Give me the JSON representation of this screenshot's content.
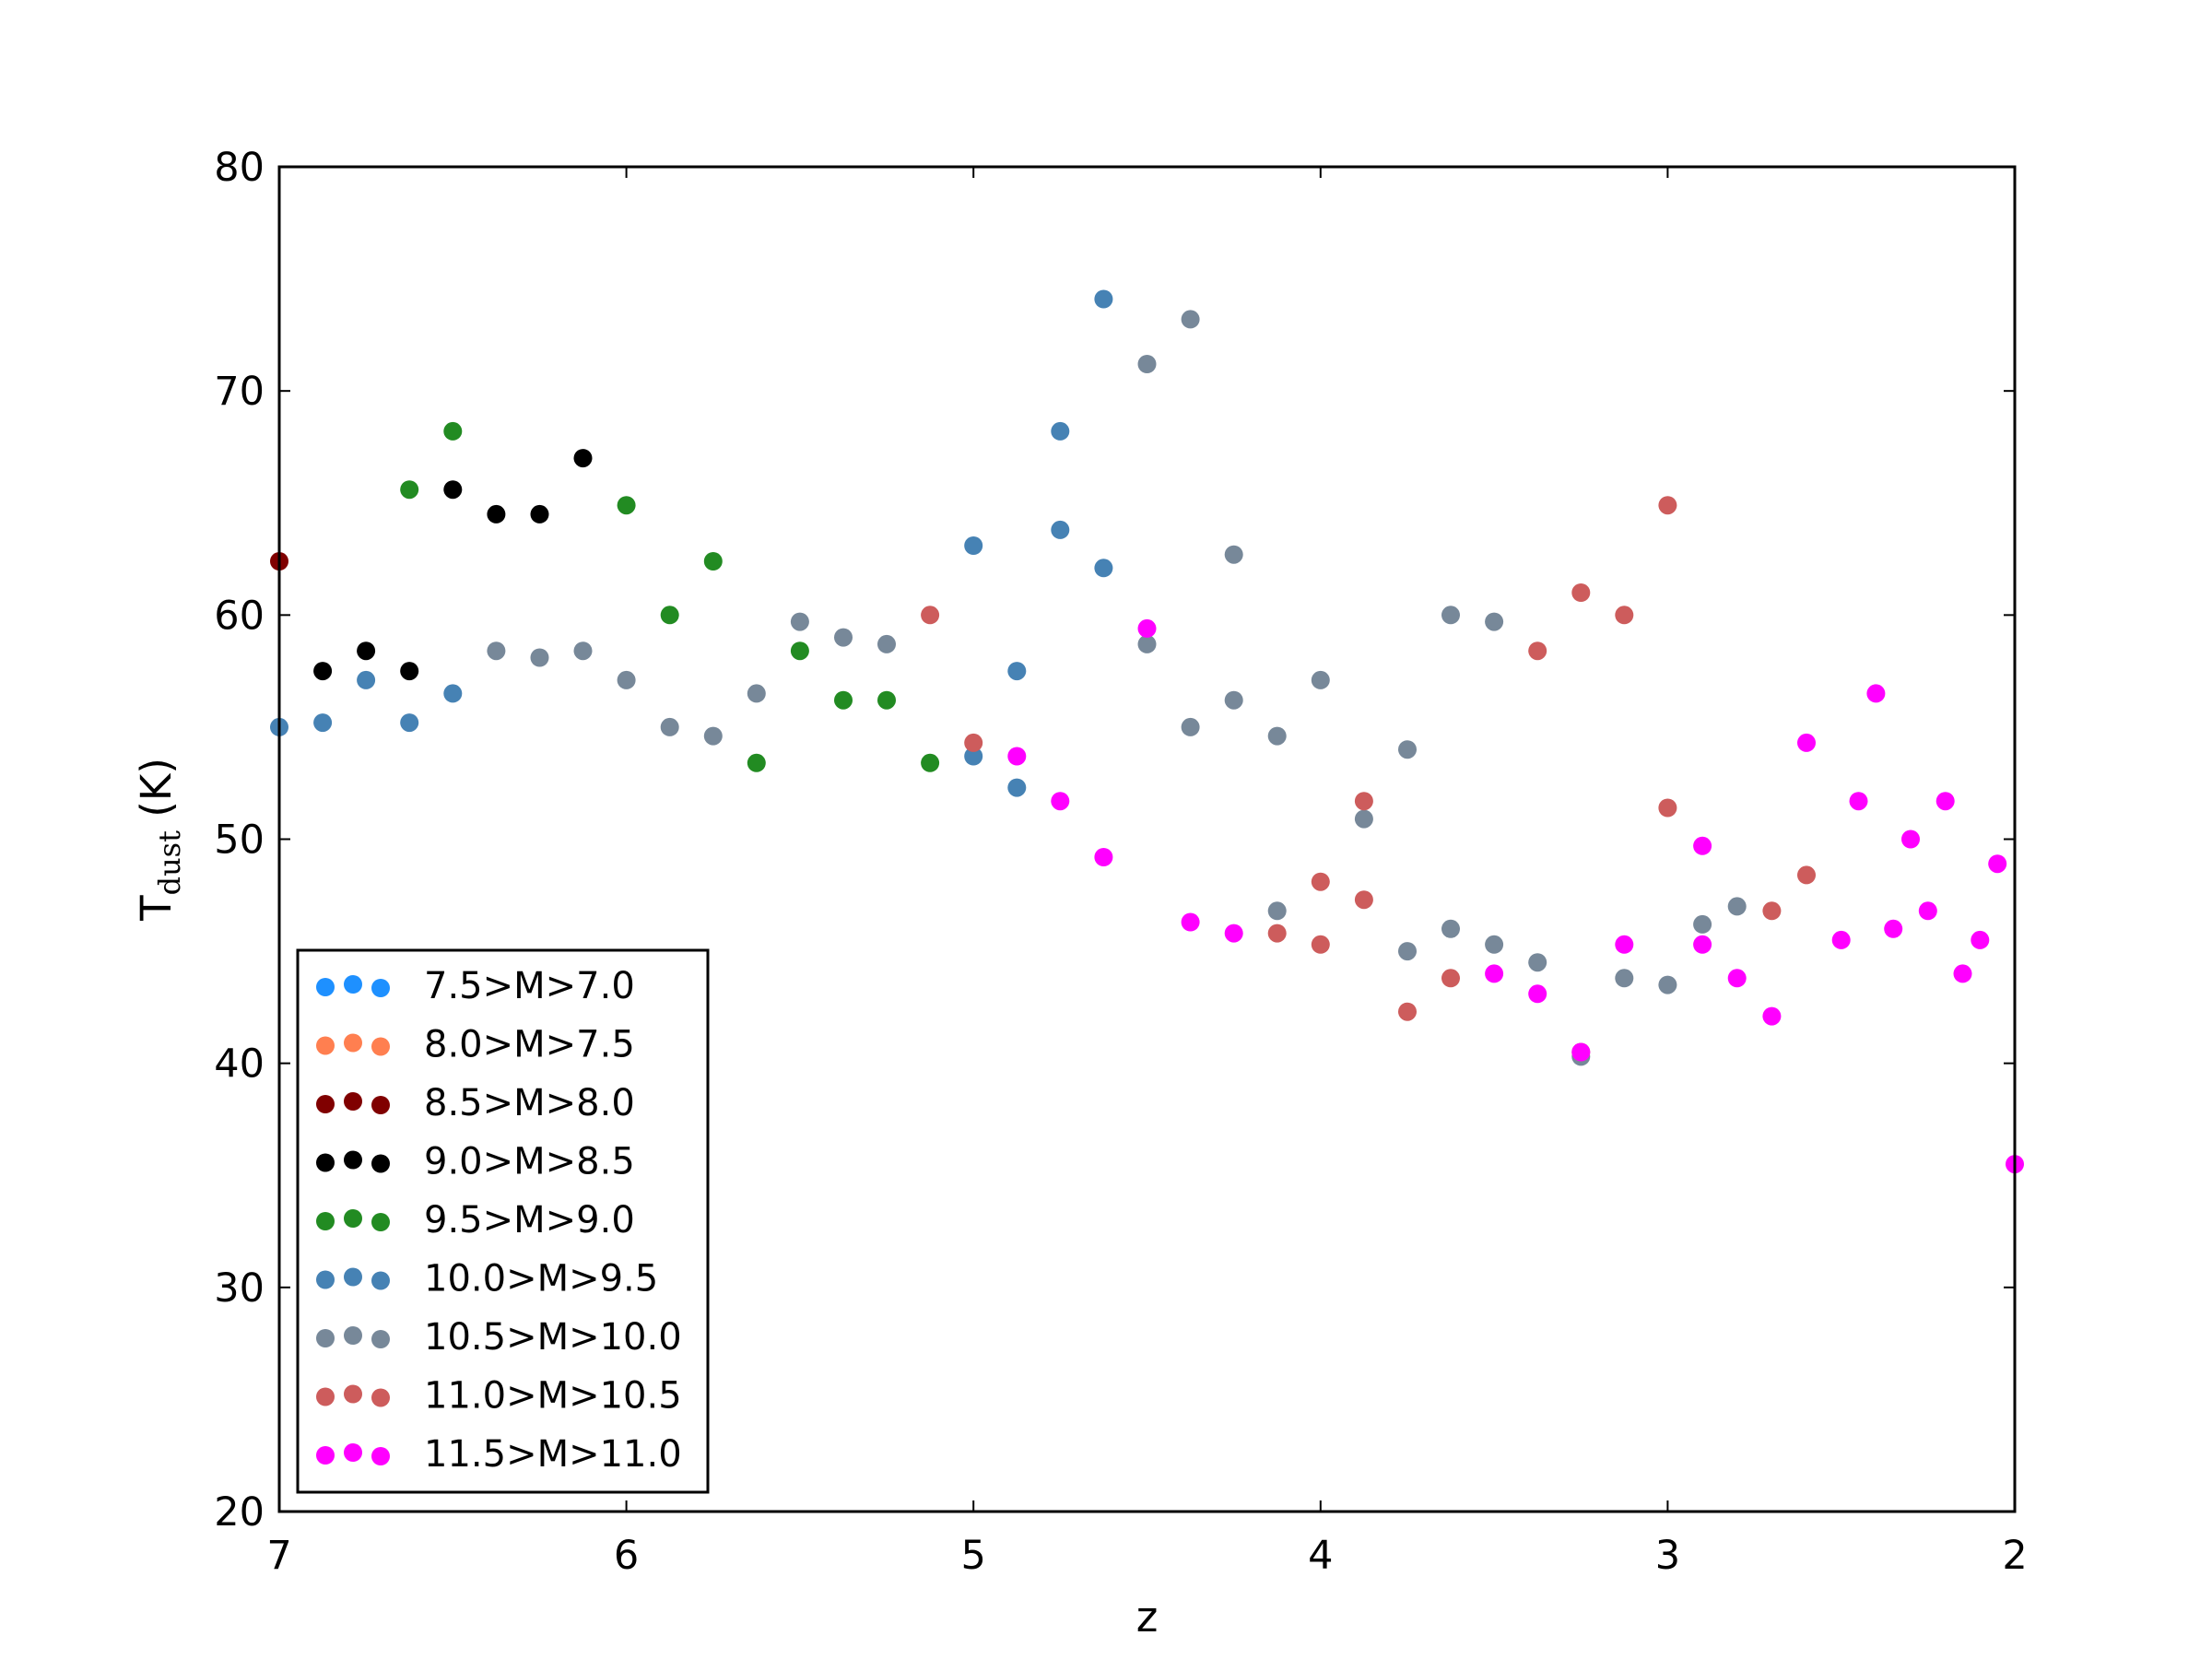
{
  "chart_data": {
    "type": "scatter",
    "title": "",
    "xlabel": "z",
    "ylabel_main": "T",
    "ylabel_sub": "dust",
    "ylabel_unit": " (K)",
    "xlim": [
      7,
      2
    ],
    "ylim": [
      20,
      80
    ],
    "x_inverted": true,
    "xticks": [
      7,
      6,
      5,
      4,
      3,
      2
    ],
    "yticks": [
      20,
      30,
      40,
      50,
      60,
      70,
      80
    ],
    "grid": false,
    "legend_position": "lower-left",
    "series": [
      {
        "name": "7.5>M>7.0",
        "color": "#1e90ff",
        "points": []
      },
      {
        "name": "8.0>M>7.5",
        "color": "#ff7f50",
        "points": []
      },
      {
        "name": "8.5>M>8.0",
        "color": "#800000",
        "points": [
          [
            7.0,
            62.4
          ]
        ]
      },
      {
        "name": "9.0>M>8.5",
        "color": "#000000",
        "points": [
          [
            6.875,
            57.5
          ],
          [
            6.75,
            58.4
          ],
          [
            6.625,
            57.5
          ],
          [
            6.5,
            65.6
          ],
          [
            6.375,
            64.5
          ],
          [
            6.25,
            64.5
          ],
          [
            6.125,
            67.0
          ]
        ]
      },
      {
        "name": "9.5>M>9.0",
        "color": "#228b22",
        "points": [
          [
            6.625,
            65.6
          ],
          [
            6.5,
            68.2
          ],
          [
            6.0,
            64.9
          ],
          [
            5.875,
            60.0
          ],
          [
            5.75,
            62.4
          ],
          [
            5.625,
            53.4
          ],
          [
            5.5,
            58.4
          ],
          [
            5.375,
            56.2
          ],
          [
            5.25,
            56.2
          ],
          [
            5.125,
            53.4
          ]
        ]
      },
      {
        "name": "10.0>M>9.5",
        "color": "#4682b4",
        "points": [
          [
            7.0,
            55.0
          ],
          [
            6.875,
            55.2
          ],
          [
            6.75,
            57.1
          ],
          [
            6.625,
            55.2
          ],
          [
            6.5,
            56.5
          ],
          [
            5.0,
            63.1
          ],
          [
            5.0,
            53.7
          ],
          [
            4.875,
            57.5
          ],
          [
            4.875,
            52.3
          ],
          [
            4.75,
            68.2
          ],
          [
            4.75,
            63.8
          ],
          [
            4.625,
            74.1
          ],
          [
            4.625,
            62.1
          ]
        ]
      },
      {
        "name": "10.5>M>10.0",
        "color": "#778899",
        "points": [
          [
            6.375,
            58.4
          ],
          [
            6.25,
            58.1
          ],
          [
            6.125,
            58.4
          ],
          [
            6.0,
            57.1
          ],
          [
            5.875,
            55.0
          ],
          [
            5.75,
            54.6
          ],
          [
            5.625,
            56.5
          ],
          [
            5.5,
            59.7
          ],
          [
            5.375,
            59.0
          ],
          [
            5.25,
            58.7
          ],
          [
            4.5,
            71.2
          ],
          [
            4.5,
            58.7
          ],
          [
            4.375,
            73.2
          ],
          [
            4.375,
            55.0
          ],
          [
            4.25,
            62.7
          ],
          [
            4.25,
            56.2
          ],
          [
            4.125,
            54.6
          ],
          [
            4.125,
            46.8
          ],
          [
            4.0,
            57.1
          ],
          [
            3.875,
            50.9
          ],
          [
            3.75,
            54.0
          ],
          [
            3.75,
            45.0
          ],
          [
            3.625,
            60.0
          ],
          [
            3.625,
            46.0
          ],
          [
            3.5,
            59.7
          ],
          [
            3.5,
            45.3
          ],
          [
            3.375,
            44.5
          ],
          [
            3.25,
            40.3
          ],
          [
            3.125,
            43.8
          ],
          [
            3.0,
            43.5
          ],
          [
            2.9,
            46.2
          ],
          [
            2.8,
            47.0
          ]
        ]
      },
      {
        "name": "11.0>M>10.5",
        "color": "#cd5c5c",
        "points": [
          [
            5.125,
            60.0
          ],
          [
            5.0,
            54.3
          ],
          [
            4.125,
            45.8
          ],
          [
            4.0,
            48.1
          ],
          [
            4.0,
            45.3
          ],
          [
            3.875,
            51.7
          ],
          [
            3.875,
            47.3
          ],
          [
            3.75,
            42.3
          ],
          [
            3.625,
            43.8
          ],
          [
            3.375,
            58.4
          ],
          [
            3.25,
            61.0
          ],
          [
            3.25,
            40.5
          ],
          [
            3.125,
            60.0
          ],
          [
            3.0,
            64.9
          ],
          [
            3.0,
            51.4
          ],
          [
            2.7,
            46.8
          ],
          [
            2.6,
            48.4
          ]
        ]
      },
      {
        "name": "11.5>M>11.0",
        "color": "#ff00ff",
        "points": [
          [
            4.875,
            53.7
          ],
          [
            4.75,
            51.7
          ],
          [
            4.625,
            49.2
          ],
          [
            4.5,
            59.4
          ],
          [
            4.375,
            46.3
          ],
          [
            4.25,
            45.8
          ],
          [
            3.5,
            44.0
          ],
          [
            3.375,
            43.1
          ],
          [
            3.25,
            40.5
          ],
          [
            3.125,
            45.3
          ],
          [
            2.9,
            49.7
          ],
          [
            2.9,
            45.3
          ],
          [
            2.8,
            43.8
          ],
          [
            2.7,
            42.1
          ],
          [
            2.6,
            54.3
          ],
          [
            2.5,
            45.5
          ],
          [
            2.45,
            51.7
          ],
          [
            2.4,
            56.5
          ],
          [
            2.35,
            46.0
          ],
          [
            2.3,
            50.0
          ],
          [
            2.25,
            46.8
          ],
          [
            2.2,
            51.7
          ],
          [
            2.15,
            44.0
          ],
          [
            2.1,
            45.5
          ],
          [
            2.05,
            48.9
          ],
          [
            2.0,
            35.5
          ]
        ]
      }
    ]
  }
}
